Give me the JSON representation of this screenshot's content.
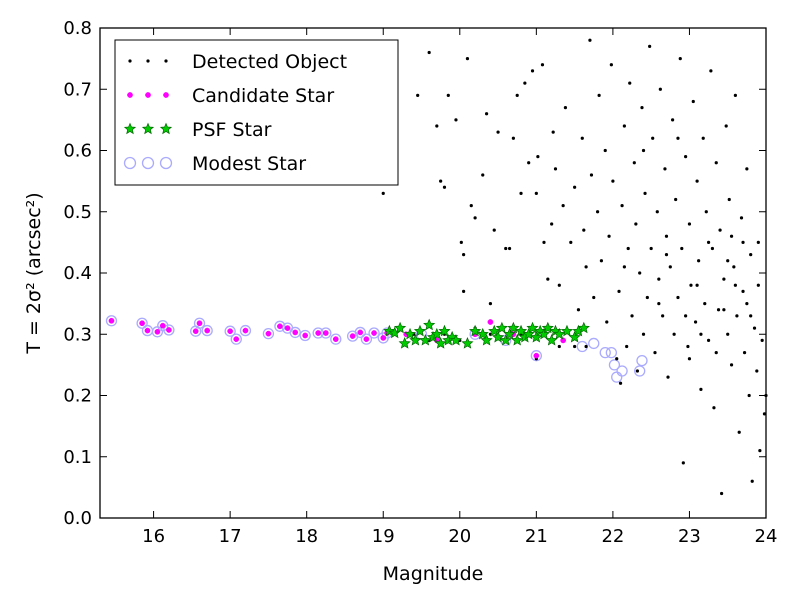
{
  "chart_data": {
    "type": "scatter",
    "xlabel": "Magnitude",
    "ylabel": "T = 2σ² (arcsec²)",
    "xlim": [
      15.3,
      24
    ],
    "ylim": [
      0.0,
      0.8
    ],
    "xticks": [
      "16",
      "17",
      "18",
      "19",
      "20",
      "21",
      "22",
      "23",
      "24"
    ],
    "yticks": [
      "0.0",
      "0.1",
      "0.2",
      "0.3",
      "0.4",
      "0.5",
      "0.6",
      "0.7",
      "0.8"
    ],
    "legend_position": "top-left",
    "grid": false,
    "series": [
      {
        "name": "Detected Object",
        "marker": "dot",
        "color": "#000000",
        "points": [
          [
            15.45,
            0.322
          ],
          [
            15.85,
            0.318
          ],
          [
            15.92,
            0.306
          ],
          [
            16.05,
            0.304
          ],
          [
            16.12,
            0.314
          ],
          [
            16.2,
            0.307
          ],
          [
            16.55,
            0.305
          ],
          [
            16.6,
            0.318
          ],
          [
            16.7,
            0.306
          ],
          [
            17.0,
            0.305
          ],
          [
            17.08,
            0.292
          ],
          [
            17.2,
            0.306
          ],
          [
            17.5,
            0.301
          ],
          [
            17.65,
            0.313
          ],
          [
            17.75,
            0.31
          ],
          [
            17.85,
            0.303
          ],
          [
            17.98,
            0.298
          ],
          [
            18.15,
            0.302
          ],
          [
            18.25,
            0.302
          ],
          [
            18.38,
            0.292
          ],
          [
            18.6,
            0.297
          ],
          [
            18.7,
            0.303
          ],
          [
            18.78,
            0.292
          ],
          [
            18.88,
            0.302
          ],
          [
            19.0,
            0.294
          ],
          [
            19.05,
            0.302
          ],
          [
            19.0,
            0.53
          ],
          [
            19.2,
            0.31
          ],
          [
            19.4,
            0.3
          ],
          [
            19.6,
            0.29
          ],
          [
            19.8,
            0.3
          ],
          [
            20.0,
            0.29
          ],
          [
            20.2,
            0.31
          ],
          [
            20.4,
            0.3
          ],
          [
            20.6,
            0.29
          ],
          [
            20.8,
            0.3
          ],
          [
            21.0,
            0.26
          ],
          [
            21.1,
            0.3
          ],
          [
            21.3,
            0.28
          ],
          [
            21.5,
            0.28
          ],
          [
            21.65,
            0.28
          ],
          [
            19.45,
            0.69
          ],
          [
            19.6,
            0.76
          ],
          [
            19.7,
            0.64
          ],
          [
            19.75,
            0.55
          ],
          [
            19.8,
            0.54
          ],
          [
            19.85,
            0.69
          ],
          [
            19.95,
            0.65
          ],
          [
            20.02,
            0.45
          ],
          [
            20.05,
            0.37
          ],
          [
            20.05,
            0.43
          ],
          [
            20.1,
            0.75
          ],
          [
            20.15,
            0.51
          ],
          [
            20.2,
            0.49
          ],
          [
            20.3,
            0.56
          ],
          [
            20.35,
            0.66
          ],
          [
            20.4,
            0.35
          ],
          [
            20.45,
            0.47
          ],
          [
            20.5,
            0.63
          ],
          [
            20.6,
            0.44
          ],
          [
            20.65,
            0.44
          ],
          [
            20.7,
            0.62
          ],
          [
            20.75,
            0.69
          ],
          [
            20.8,
            0.53
          ],
          [
            20.85,
            0.71
          ],
          [
            20.9,
            0.58
          ],
          [
            20.95,
            0.73
          ],
          [
            21.0,
            0.53
          ],
          [
            21.02,
            0.59
          ],
          [
            21.08,
            0.74
          ],
          [
            21.1,
            0.45
          ],
          [
            21.15,
            0.39
          ],
          [
            21.2,
            0.48
          ],
          [
            21.22,
            0.63
          ],
          [
            21.25,
            0.57
          ],
          [
            21.3,
            0.38
          ],
          [
            21.35,
            0.51
          ],
          [
            21.38,
            0.67
          ],
          [
            21.45,
            0.45
          ],
          [
            21.5,
            0.54
          ],
          [
            21.55,
            0.34
          ],
          [
            21.6,
            0.62
          ],
          [
            21.62,
            0.47
          ],
          [
            21.65,
            0.41
          ],
          [
            21.7,
            0.78
          ],
          [
            21.72,
            0.56
          ],
          [
            21.75,
            0.36
          ],
          [
            21.8,
            0.5
          ],
          [
            21.82,
            0.69
          ],
          [
            21.85,
            0.42
          ],
          [
            21.9,
            0.6
          ],
          [
            21.92,
            0.32
          ],
          [
            21.95,
            0.46
          ],
          [
            21.98,
            0.74
          ],
          [
            22.0,
            0.55
          ],
          [
            22.05,
            0.26
          ],
          [
            22.08,
            0.37
          ],
          [
            22.1,
            0.22
          ],
          [
            22.12,
            0.51
          ],
          [
            22.15,
            0.64
          ],
          [
            22.18,
            0.28
          ],
          [
            22.2,
            0.44
          ],
          [
            22.22,
            0.71
          ],
          [
            22.25,
            0.33
          ],
          [
            22.28,
            0.58
          ],
          [
            22.3,
            0.48
          ],
          [
            22.32,
            0.24
          ],
          [
            22.35,
            0.4
          ],
          [
            22.38,
            0.67
          ],
          [
            22.4,
            0.3
          ],
          [
            22.42,
            0.53
          ],
          [
            22.45,
            0.36
          ],
          [
            22.48,
            0.77
          ],
          [
            22.5,
            0.44
          ],
          [
            22.52,
            0.62
          ],
          [
            22.55,
            0.27
          ],
          [
            22.58,
            0.5
          ],
          [
            22.6,
            0.39
          ],
          [
            22.62,
            0.7
          ],
          [
            22.65,
            0.33
          ],
          [
            22.68,
            0.57
          ],
          [
            22.7,
            0.46
          ],
          [
            22.72,
            0.23
          ],
          [
            22.75,
            0.41
          ],
          [
            22.78,
            0.65
          ],
          [
            22.8,
            0.3
          ],
          [
            22.82,
            0.52
          ],
          [
            22.85,
            0.36
          ],
          [
            22.88,
            0.75
          ],
          [
            22.9,
            0.44
          ],
          [
            22.92,
            0.09
          ],
          [
            22.95,
            0.59
          ],
          [
            22.98,
            0.28
          ],
          [
            23.0,
            0.48
          ],
          [
            23.02,
            0.38
          ],
          [
            23.05,
            0.68
          ],
          [
            23.08,
            0.32
          ],
          [
            23.1,
            0.55
          ],
          [
            23.12,
            0.42
          ],
          [
            23.15,
            0.21
          ],
          [
            23.18,
            0.62
          ],
          [
            23.2,
            0.35
          ],
          [
            23.22,
            0.5
          ],
          [
            23.25,
            0.29
          ],
          [
            23.28,
            0.73
          ],
          [
            23.3,
            0.44
          ],
          [
            23.32,
            0.18
          ],
          [
            23.35,
            0.58
          ],
          [
            23.38,
            0.34
          ],
          [
            23.4,
            0.47
          ],
          [
            23.42,
            0.04
          ],
          [
            23.45,
            0.39
          ],
          [
            23.48,
            0.64
          ],
          [
            23.5,
            0.3
          ],
          [
            23.52,
            0.52
          ],
          [
            23.55,
            0.25
          ],
          [
            23.58,
            0.41
          ],
          [
            23.6,
            0.69
          ],
          [
            23.62,
            0.33
          ],
          [
            23.65,
            0.14
          ],
          [
            23.68,
            0.49
          ],
          [
            23.7,
            0.37
          ],
          [
            23.72,
            0.27
          ],
          [
            23.75,
            0.57
          ],
          [
            23.78,
            0.2
          ],
          [
            23.8,
            0.43
          ],
          [
            23.82,
            0.06
          ],
          [
            23.85,
            0.31
          ],
          [
            23.88,
            0.24
          ],
          [
            23.9,
            0.38
          ],
          [
            23.92,
            0.11
          ],
          [
            23.95,
            0.29
          ],
          [
            23.98,
            0.17
          ],
          [
            22.15,
            0.41
          ],
          [
            22.4,
            0.6
          ],
          [
            22.6,
            0.35
          ],
          [
            22.85,
            0.62
          ],
          [
            23.0,
            0.26
          ],
          [
            23.1,
            0.38
          ],
          [
            23.25,
            0.45
          ],
          [
            23.35,
            0.27
          ],
          [
            23.5,
            0.42
          ],
          [
            23.6,
            0.38
          ],
          [
            23.7,
            0.45
          ],
          [
            23.8,
            0.33
          ],
          [
            23.9,
            0.45
          ],
          [
            24.0,
            0.2
          ],
          [
            22.7,
            0.43
          ],
          [
            22.95,
            0.33
          ],
          [
            23.15,
            0.3
          ],
          [
            23.45,
            0.34
          ],
          [
            23.55,
            0.46
          ],
          [
            23.75,
            0.35
          ]
        ]
      },
      {
        "name": "Candidate Star",
        "marker": "circle-small",
        "color": "#ff00ff",
        "points": [
          [
            15.45,
            0.322
          ],
          [
            15.85,
            0.318
          ],
          [
            15.92,
            0.306
          ],
          [
            16.05,
            0.304
          ],
          [
            16.12,
            0.314
          ],
          [
            16.2,
            0.307
          ],
          [
            16.55,
            0.305
          ],
          [
            16.6,
            0.318
          ],
          [
            16.7,
            0.306
          ],
          [
            17.0,
            0.305
          ],
          [
            17.08,
            0.292
          ],
          [
            17.2,
            0.306
          ],
          [
            17.5,
            0.301
          ],
          [
            17.65,
            0.313
          ],
          [
            17.75,
            0.31
          ],
          [
            17.85,
            0.303
          ],
          [
            17.98,
            0.298
          ],
          [
            18.15,
            0.302
          ],
          [
            18.25,
            0.302
          ],
          [
            18.38,
            0.292
          ],
          [
            18.6,
            0.297
          ],
          [
            18.7,
            0.303
          ],
          [
            18.78,
            0.292
          ],
          [
            18.88,
            0.302
          ],
          [
            19.0,
            0.294
          ],
          [
            19.05,
            0.302
          ],
          [
            19.3,
            0.3
          ],
          [
            19.7,
            0.29
          ],
          [
            20.2,
            0.3
          ],
          [
            20.4,
            0.32
          ],
          [
            20.7,
            0.3
          ],
          [
            21.0,
            0.265
          ],
          [
            21.35,
            0.29
          ]
        ]
      },
      {
        "name": "PSF Star",
        "marker": "star",
        "color": "#00cc00",
        "points": [
          [
            19.08,
            0.305
          ],
          [
            19.15,
            0.302
          ],
          [
            19.22,
            0.31
          ],
          [
            19.28,
            0.285
          ],
          [
            19.35,
            0.3
          ],
          [
            19.42,
            0.29
          ],
          [
            19.48,
            0.305
          ],
          [
            19.55,
            0.29
          ],
          [
            19.6,
            0.315
          ],
          [
            19.65,
            0.295
          ],
          [
            19.7,
            0.3
          ],
          [
            19.75,
            0.285
          ],
          [
            19.8,
            0.305
          ],
          [
            19.85,
            0.29
          ],
          [
            19.9,
            0.295
          ],
          [
            19.95,
            0.29
          ],
          [
            20.1,
            0.285
          ],
          [
            20.2,
            0.305
          ],
          [
            20.3,
            0.3
          ],
          [
            20.35,
            0.29
          ],
          [
            20.45,
            0.305
          ],
          [
            20.5,
            0.295
          ],
          [
            20.55,
            0.31
          ],
          [
            20.6,
            0.29
          ],
          [
            20.65,
            0.3
          ],
          [
            20.7,
            0.31
          ],
          [
            20.75,
            0.29
          ],
          [
            20.8,
            0.305
          ],
          [
            20.85,
            0.295
          ],
          [
            20.9,
            0.3
          ],
          [
            20.95,
            0.31
          ],
          [
            21.0,
            0.295
          ],
          [
            21.05,
            0.305
          ],
          [
            21.1,
            0.3
          ],
          [
            21.15,
            0.31
          ],
          [
            21.2,
            0.29
          ],
          [
            21.25,
            0.305
          ],
          [
            21.3,
            0.3
          ],
          [
            21.4,
            0.305
          ],
          [
            21.5,
            0.295
          ],
          [
            21.55,
            0.305
          ],
          [
            21.62,
            0.31
          ]
        ]
      },
      {
        "name": "Modest Star",
        "marker": "ring",
        "color": "#aaaaff",
        "points": [
          [
            15.45,
            0.322
          ],
          [
            15.85,
            0.318
          ],
          [
            15.92,
            0.306
          ],
          [
            16.05,
            0.304
          ],
          [
            16.12,
            0.314
          ],
          [
            16.2,
            0.307
          ],
          [
            16.55,
            0.305
          ],
          [
            16.6,
            0.318
          ],
          [
            16.7,
            0.306
          ],
          [
            17.0,
            0.305
          ],
          [
            17.08,
            0.292
          ],
          [
            17.2,
            0.306
          ],
          [
            17.5,
            0.301
          ],
          [
            17.65,
            0.313
          ],
          [
            17.75,
            0.31
          ],
          [
            17.85,
            0.303
          ],
          [
            17.98,
            0.298
          ],
          [
            18.15,
            0.302
          ],
          [
            18.25,
            0.302
          ],
          [
            18.38,
            0.292
          ],
          [
            18.6,
            0.297
          ],
          [
            18.7,
            0.303
          ],
          [
            18.78,
            0.292
          ],
          [
            18.88,
            0.302
          ],
          [
            19.0,
            0.294
          ],
          [
            19.05,
            0.302
          ],
          [
            19.5,
            0.3
          ],
          [
            20.2,
            0.3
          ],
          [
            20.6,
            0.29
          ],
          [
            21.0,
            0.265
          ],
          [
            21.6,
            0.28
          ],
          [
            21.75,
            0.285
          ],
          [
            21.9,
            0.27
          ],
          [
            21.98,
            0.27
          ],
          [
            22.02,
            0.25
          ],
          [
            22.05,
            0.23
          ],
          [
            22.12,
            0.24
          ],
          [
            22.35,
            0.24
          ],
          [
            22.38,
            0.257
          ]
        ]
      }
    ]
  }
}
